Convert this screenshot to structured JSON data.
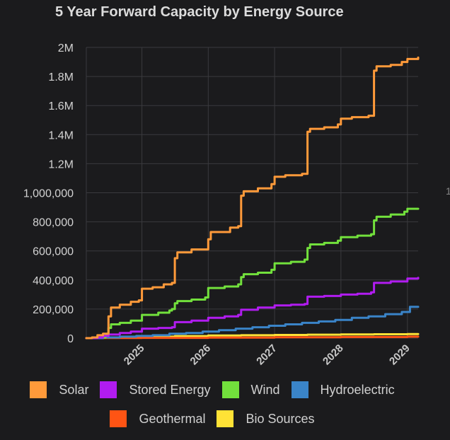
{
  "chart_data": {
    "type": "line",
    "title": "5 Year Forward Capacity by Energy Source",
    "xlabel": "",
    "ylabel": "",
    "x_tick_labels": [
      "2025",
      "2026",
      "2027",
      "2028",
      "2029"
    ],
    "xlim": [
      "2024-03-01",
      "2029-03-01"
    ],
    "ylim": [
      0,
      2000000
    ],
    "y_tick_values": [
      0,
      200000,
      400000,
      600000,
      800000,
      1000000,
      1200000,
      1400000,
      1600000,
      1800000,
      2000000
    ],
    "y_tick_labels": [
      "0",
      "200,000",
      "400,000",
      "600,000",
      "800,000",
      "1,000,000",
      "1.2M",
      "1.4M",
      "1.6M",
      "1.8M",
      "2M"
    ],
    "grid": true,
    "legend_position": "bottom",
    "series": [
      {
        "name": "Solar",
        "color": "#ff9a3a",
        "points": [
          [
            "2024-03-01",
            0
          ],
          [
            "2024-04-01",
            5000
          ],
          [
            "2024-05-01",
            20000
          ],
          [
            "2024-06-01",
            30000
          ],
          [
            "2024-07-01",
            150000
          ],
          [
            "2024-07-15",
            210000
          ],
          [
            "2024-09-01",
            230000
          ],
          [
            "2024-11-01",
            250000
          ],
          [
            "2024-12-15",
            260000
          ],
          [
            "2025-01-01",
            340000
          ],
          [
            "2025-03-01",
            350000
          ],
          [
            "2025-05-01",
            370000
          ],
          [
            "2025-06-15",
            380000
          ],
          [
            "2025-07-01",
            550000
          ],
          [
            "2025-07-15",
            590000
          ],
          [
            "2025-10-01",
            610000
          ],
          [
            "2026-01-01",
            680000
          ],
          [
            "2026-01-15",
            730000
          ],
          [
            "2026-05-01",
            760000
          ],
          [
            "2026-06-15",
            770000
          ],
          [
            "2026-07-01",
            980000
          ],
          [
            "2026-07-15",
            1010000
          ],
          [
            "2026-10-01",
            1030000
          ],
          [
            "2026-12-15",
            1060000
          ],
          [
            "2027-01-01",
            1110000
          ],
          [
            "2027-03-01",
            1120000
          ],
          [
            "2027-06-01",
            1130000
          ],
          [
            "2027-07-01",
            1420000
          ],
          [
            "2027-07-15",
            1440000
          ],
          [
            "2027-10-01",
            1450000
          ],
          [
            "2027-12-15",
            1470000
          ],
          [
            "2028-01-01",
            1510000
          ],
          [
            "2028-03-01",
            1520000
          ],
          [
            "2028-06-01",
            1530000
          ],
          [
            "2028-07-01",
            1840000
          ],
          [
            "2028-07-15",
            1870000
          ],
          [
            "2028-10-01",
            1880000
          ],
          [
            "2028-12-01",
            1900000
          ],
          [
            "2029-01-01",
            1920000
          ],
          [
            "2029-03-01",
            1930000
          ]
        ]
      },
      {
        "name": "Stored Energy",
        "color": "#b11cf0",
        "points": [
          [
            "2024-03-01",
            0
          ],
          [
            "2024-05-01",
            5000
          ],
          [
            "2024-06-01",
            15000
          ],
          [
            "2024-07-01",
            25000
          ],
          [
            "2024-09-01",
            35000
          ],
          [
            "2024-11-01",
            45000
          ],
          [
            "2025-01-01",
            65000
          ],
          [
            "2025-04-01",
            70000
          ],
          [
            "2025-06-15",
            75000
          ],
          [
            "2025-07-01",
            110000
          ],
          [
            "2025-10-01",
            120000
          ],
          [
            "2026-01-01",
            140000
          ],
          [
            "2026-04-01",
            150000
          ],
          [
            "2026-06-15",
            160000
          ],
          [
            "2026-07-01",
            195000
          ],
          [
            "2026-10-01",
            210000
          ],
          [
            "2027-01-01",
            225000
          ],
          [
            "2027-04-01",
            230000
          ],
          [
            "2027-06-15",
            235000
          ],
          [
            "2027-07-01",
            285000
          ],
          [
            "2027-10-01",
            290000
          ],
          [
            "2028-01-01",
            300000
          ],
          [
            "2028-04-01",
            305000
          ],
          [
            "2028-06-15",
            315000
          ],
          [
            "2028-07-01",
            380000
          ],
          [
            "2028-10-01",
            390000
          ],
          [
            "2029-01-01",
            410000
          ],
          [
            "2029-03-01",
            415000
          ]
        ]
      },
      {
        "name": "Wind",
        "color": "#72e03c",
        "points": [
          [
            "2024-03-01",
            0
          ],
          [
            "2024-05-01",
            5000
          ],
          [
            "2024-06-15",
            20000
          ],
          [
            "2024-07-01",
            70000
          ],
          [
            "2024-07-15",
            95000
          ],
          [
            "2024-09-01",
            105000
          ],
          [
            "2024-11-01",
            120000
          ],
          [
            "2025-01-01",
            160000
          ],
          [
            "2025-04-01",
            175000
          ],
          [
            "2025-06-01",
            190000
          ],
          [
            "2025-06-15",
            200000
          ],
          [
            "2025-07-01",
            240000
          ],
          [
            "2025-07-15",
            255000
          ],
          [
            "2025-10-01",
            265000
          ],
          [
            "2025-12-15",
            280000
          ],
          [
            "2026-01-01",
            345000
          ],
          [
            "2026-04-01",
            355000
          ],
          [
            "2026-06-15",
            370000
          ],
          [
            "2026-07-01",
            420000
          ],
          [
            "2026-07-15",
            440000
          ],
          [
            "2026-10-01",
            450000
          ],
          [
            "2026-12-15",
            470000
          ],
          [
            "2027-01-01",
            515000
          ],
          [
            "2027-04-01",
            525000
          ],
          [
            "2027-06-15",
            540000
          ],
          [
            "2027-07-01",
            620000
          ],
          [
            "2027-07-15",
            645000
          ],
          [
            "2027-10-01",
            655000
          ],
          [
            "2027-12-15",
            670000
          ],
          [
            "2028-01-01",
            695000
          ],
          [
            "2028-04-01",
            705000
          ],
          [
            "2028-06-15",
            715000
          ],
          [
            "2028-07-01",
            810000
          ],
          [
            "2028-07-15",
            835000
          ],
          [
            "2028-10-01",
            850000
          ],
          [
            "2028-12-15",
            870000
          ],
          [
            "2029-01-01",
            890000
          ],
          [
            "2029-03-01",
            890000
          ]
        ]
      },
      {
        "name": "Hydroelectric",
        "color": "#3a84c8",
        "points": [
          [
            "2024-03-01",
            0
          ],
          [
            "2024-06-01",
            5000
          ],
          [
            "2024-09-01",
            10000
          ],
          [
            "2024-12-01",
            15000
          ],
          [
            "2025-03-01",
            20000
          ],
          [
            "2025-06-01",
            30000
          ],
          [
            "2025-09-01",
            35000
          ],
          [
            "2025-12-01",
            45000
          ],
          [
            "2026-03-01",
            55000
          ],
          [
            "2026-06-01",
            65000
          ],
          [
            "2026-09-01",
            75000
          ],
          [
            "2026-12-01",
            85000
          ],
          [
            "2027-03-01",
            95000
          ],
          [
            "2027-06-01",
            105000
          ],
          [
            "2027-09-01",
            115000
          ],
          [
            "2027-12-01",
            125000
          ],
          [
            "2028-03-01",
            140000
          ],
          [
            "2028-06-01",
            150000
          ],
          [
            "2028-09-01",
            165000
          ],
          [
            "2028-12-01",
            180000
          ],
          [
            "2029-01-15",
            215000
          ],
          [
            "2029-03-01",
            215000
          ]
        ]
      },
      {
        "name": "Geothermal",
        "color": "#ff5414",
        "points": [
          [
            "2024-03-01",
            0
          ],
          [
            "2024-06-01",
            1000
          ],
          [
            "2025-01-01",
            2000
          ],
          [
            "2026-01-01",
            4000
          ],
          [
            "2027-01-01",
            6000
          ],
          [
            "2028-01-01",
            8000
          ],
          [
            "2029-01-01",
            10000
          ],
          [
            "2029-03-01",
            10000
          ]
        ]
      },
      {
        "name": "Bio Sources",
        "color": "#ffe236",
        "points": [
          [
            "2024-03-01",
            0
          ],
          [
            "2024-06-01",
            3000
          ],
          [
            "2024-09-01",
            7000
          ],
          [
            "2025-01-01",
            10000
          ],
          [
            "2025-07-01",
            14000
          ],
          [
            "2026-01-01",
            18000
          ],
          [
            "2026-07-01",
            20000
          ],
          [
            "2027-01-01",
            22000
          ],
          [
            "2027-07-01",
            24000
          ],
          [
            "2028-01-01",
            26000
          ],
          [
            "2028-07-01",
            27000
          ],
          [
            "2029-01-01",
            28000
          ],
          [
            "2029-03-01",
            28000
          ]
        ]
      }
    ]
  },
  "legend": {
    "row1": [
      {
        "label": "Solar",
        "color": "#ff9a3a"
      },
      {
        "label": "Stored Energy",
        "color": "#b11cf0"
      },
      {
        "label": "Wind",
        "color": "#72e03c"
      },
      {
        "label": "Hydroelectric",
        "color": "#3a84c8"
      }
    ],
    "row2": [
      {
        "label": "Geothermal",
        "color": "#ff5414"
      },
      {
        "label": "Bio Sources",
        "color": "#ffe236"
      }
    ]
  },
  "stray_text": "1"
}
